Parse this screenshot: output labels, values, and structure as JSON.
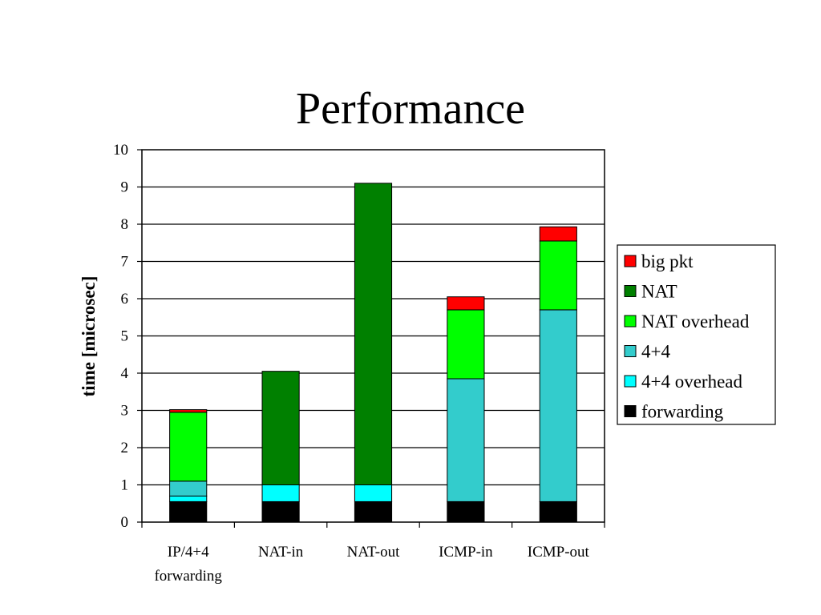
{
  "slide": {
    "title": "Performance"
  },
  "chart_data": {
    "type": "bar",
    "stacked": true,
    "title": "",
    "xlabel": "",
    "ylabel": "time [microsec]",
    "ylim": [
      0,
      10
    ],
    "yticks": [
      0,
      1,
      2,
      3,
      4,
      5,
      6,
      7,
      8,
      9,
      10
    ],
    "grid": true,
    "legend_position": "right",
    "categories": [
      "IP/4+4 forwarding",
      "NAT-in",
      "NAT-out",
      "ICMP-in",
      "ICMP-out"
    ],
    "category_label_lines": [
      [
        "IP/4+4",
        "forwarding"
      ],
      [
        "NAT-in"
      ],
      [
        "NAT-out"
      ],
      [
        "ICMP-in"
      ],
      [
        "ICMP-out"
      ]
    ],
    "series": [
      {
        "name": "forwarding",
        "color": "#000000",
        "values": [
          0.55,
          0.55,
          0.55,
          0.55,
          0.55
        ]
      },
      {
        "name": "4+4 overhead",
        "color": "#00FFFF",
        "values": [
          0.15,
          0.45,
          0.45,
          0,
          0
        ]
      },
      {
        "name": "4+4",
        "color": "#33CCCC",
        "values": [
          0.4,
          0,
          0,
          3.3,
          5.15
        ]
      },
      {
        "name": "NAT overhead",
        "color": "#00FF00",
        "values": [
          1.85,
          0,
          0,
          1.85,
          1.85
        ]
      },
      {
        "name": "NAT",
        "color": "#008000",
        "values": [
          0,
          3.05,
          8.1,
          0,
          0
        ]
      },
      {
        "name": "big pkt",
        "color": "#FF0000",
        "values": [
          0.07,
          0,
          0,
          0.35,
          0.38
        ]
      }
    ],
    "legend_order": [
      "big pkt",
      "NAT",
      "NAT overhead",
      "4+4",
      "4+4 overhead",
      "forwarding"
    ]
  }
}
